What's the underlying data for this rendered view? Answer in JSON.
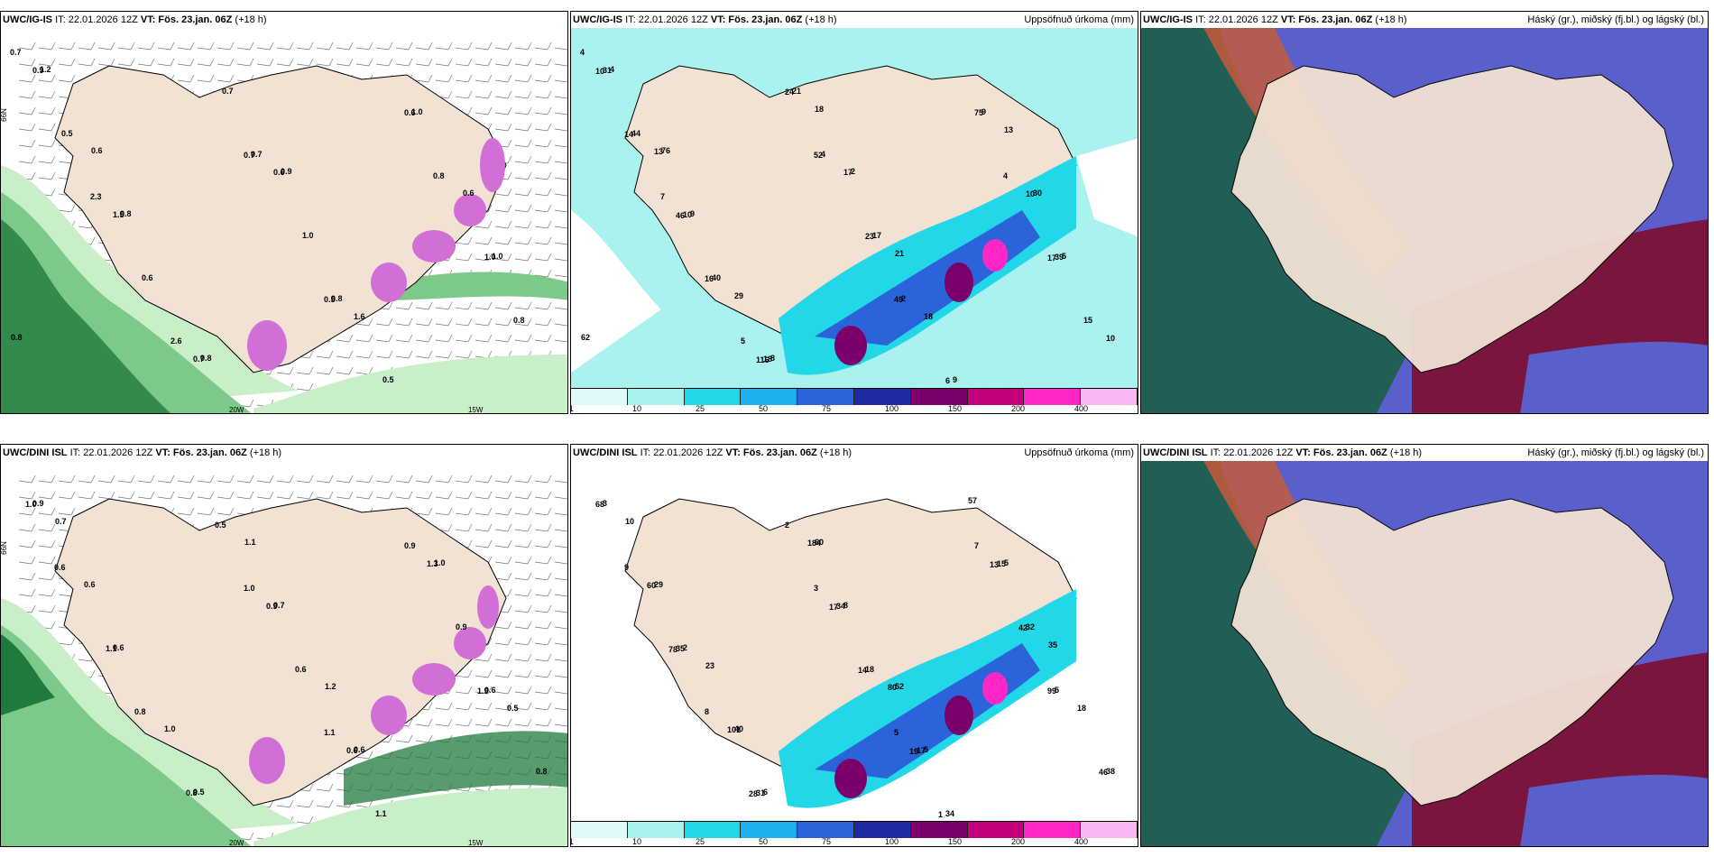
{
  "colors": {
    "land": "#f1e2d3",
    "sea": "#ffffff",
    "green_light": "#c9efc9",
    "green_mid": "#7cc98a",
    "green_dark": "#1f7a3d",
    "magenta": "#d26fd6",
    "cyan_light": "#a9f2ee",
    "cyan_mid": "#22d7e8",
    "blue": "#2b63d8",
    "navy": "#1f2aa0",
    "purple": "#7b006b",
    "pink": "#ff27c6",
    "cloud_high": "#215e55",
    "cloud_mid": "#5b5fcc",
    "cloud_low": "#7a1540"
  },
  "rows": [
    {
      "model": "UWC/IG-IS",
      "panels": [
        {
          "it_label": "IT: 22.01.2026 12Z",
          "vt_label": "VT: Fös. 23.jan. 06Z",
          "lead": "(+18 h)",
          "right_title": "",
          "axis": {
            "lon1": "20W",
            "lon2": "15W",
            "lat": "66N"
          },
          "values": [
            "0.7",
            "2.3",
            "2.6",
            "0.7",
            "0.8",
            "1.0",
            "1.0",
            "1.2",
            "0.8",
            "0.8",
            "0.9",
            "0.8",
            "0.8",
            "0.5",
            "0.6",
            "0.7",
            "1.0",
            "0.5",
            "0.6",
            "0.8",
            "0.6",
            "0.7",
            "0.5",
            "0.6",
            "1.0",
            "0.9",
            "1.5",
            "0.7",
            "0.6",
            "1.6"
          ]
        },
        {
          "it_label": "IT: 22.01.2026 12Z",
          "vt_label": "VT: Fös. 23.jan. 06Z",
          "lead": "(+18 h)",
          "right_title": "Uppsöfnuð úrkoma (mm)",
          "values": [
            "4",
            "7",
            "5",
            "4",
            "2",
            "9",
            "5",
            "4",
            "9",
            "8",
            "2",
            "4",
            "15",
            "44",
            "40",
            "21",
            "17",
            "9",
            "30",
            "62",
            "76",
            "52",
            "49",
            "75",
            "39",
            "31",
            "10",
            "18",
            "17",
            "18",
            "13",
            "14",
            "16",
            "24",
            "23",
            "6",
            "10",
            "10",
            "13",
            "29",
            "18",
            "21",
            "17",
            "10",
            "46",
            "116"
          ],
          "legend": [
            "1",
            "10",
            "25",
            "50",
            "75",
            "100",
            "150",
            "200",
            "400"
          ]
        },
        {
          "it_label": "IT: 22.01.2026 12Z",
          "vt_label": "VT: Fös. 23.jan. 06Z",
          "lead": "(+18 h)",
          "right_title": "Háský (gr.), miðský (fj.bl.) og lágský (bl.)"
        }
      ]
    },
    {
      "model": "UWC/DINI ISL",
      "panels": [
        {
          "it_label": "IT: 22.01.2026 12Z",
          "vt_label": "VT: Fös. 23.jan. 06Z",
          "lead": "(+18 h)",
          "right_title": "",
          "axis": {
            "lon1": "20W",
            "lon2": "15W",
            "lat": "66N"
          },
          "values": [
            "1.0",
            "1.1",
            "0.9",
            "0.6",
            "0.9",
            "0.6",
            "0.5",
            "0.7",
            "0.6",
            "1.0",
            "0.6",
            "0.8",
            "0.5",
            "0.6",
            "1.1",
            "0.9",
            "0.8",
            "0.6",
            "1.0",
            "1.1",
            "1.2",
            "1.9",
            "1.0",
            "1.1",
            "0.8",
            "0.9",
            "0.6",
            "1.3",
            "0.5",
            "0.7"
          ]
        },
        {
          "it_label": "IT: 22.01.2026 12Z",
          "vt_label": "VT: Fös. 23.jan. 06Z",
          "lead": "(+18 h)",
          "right_title": "Uppsöfnuð úrkoma (mm)",
          "values": [
            "3",
            "5",
            "7",
            "5",
            "3",
            "2",
            "6",
            "8",
            "5",
            "5",
            "9",
            "8",
            "2",
            "18",
            "34",
            "32",
            "38",
            "29",
            "40",
            "60",
            "52",
            "99",
            "68",
            "35",
            "31",
            "34",
            "17",
            "15",
            "18",
            "10",
            "23",
            "14",
            "1",
            "42",
            "46",
            "60",
            "101",
            "184",
            "80",
            "57",
            "35",
            "78",
            "28",
            "17",
            "19",
            "13"
          ],
          "legend": [
            "1",
            "10",
            "25",
            "50",
            "75",
            "100",
            "150",
            "200",
            "400"
          ]
        },
        {
          "it_label": "IT: 22.01.2026 12Z",
          "vt_label": "VT: Fös. 23.jan. 06Z",
          "lead": "(+18 h)",
          "right_title": "Háský (gr.), miðský (fj.bl.) og lágský (bl.)"
        }
      ]
    }
  ]
}
